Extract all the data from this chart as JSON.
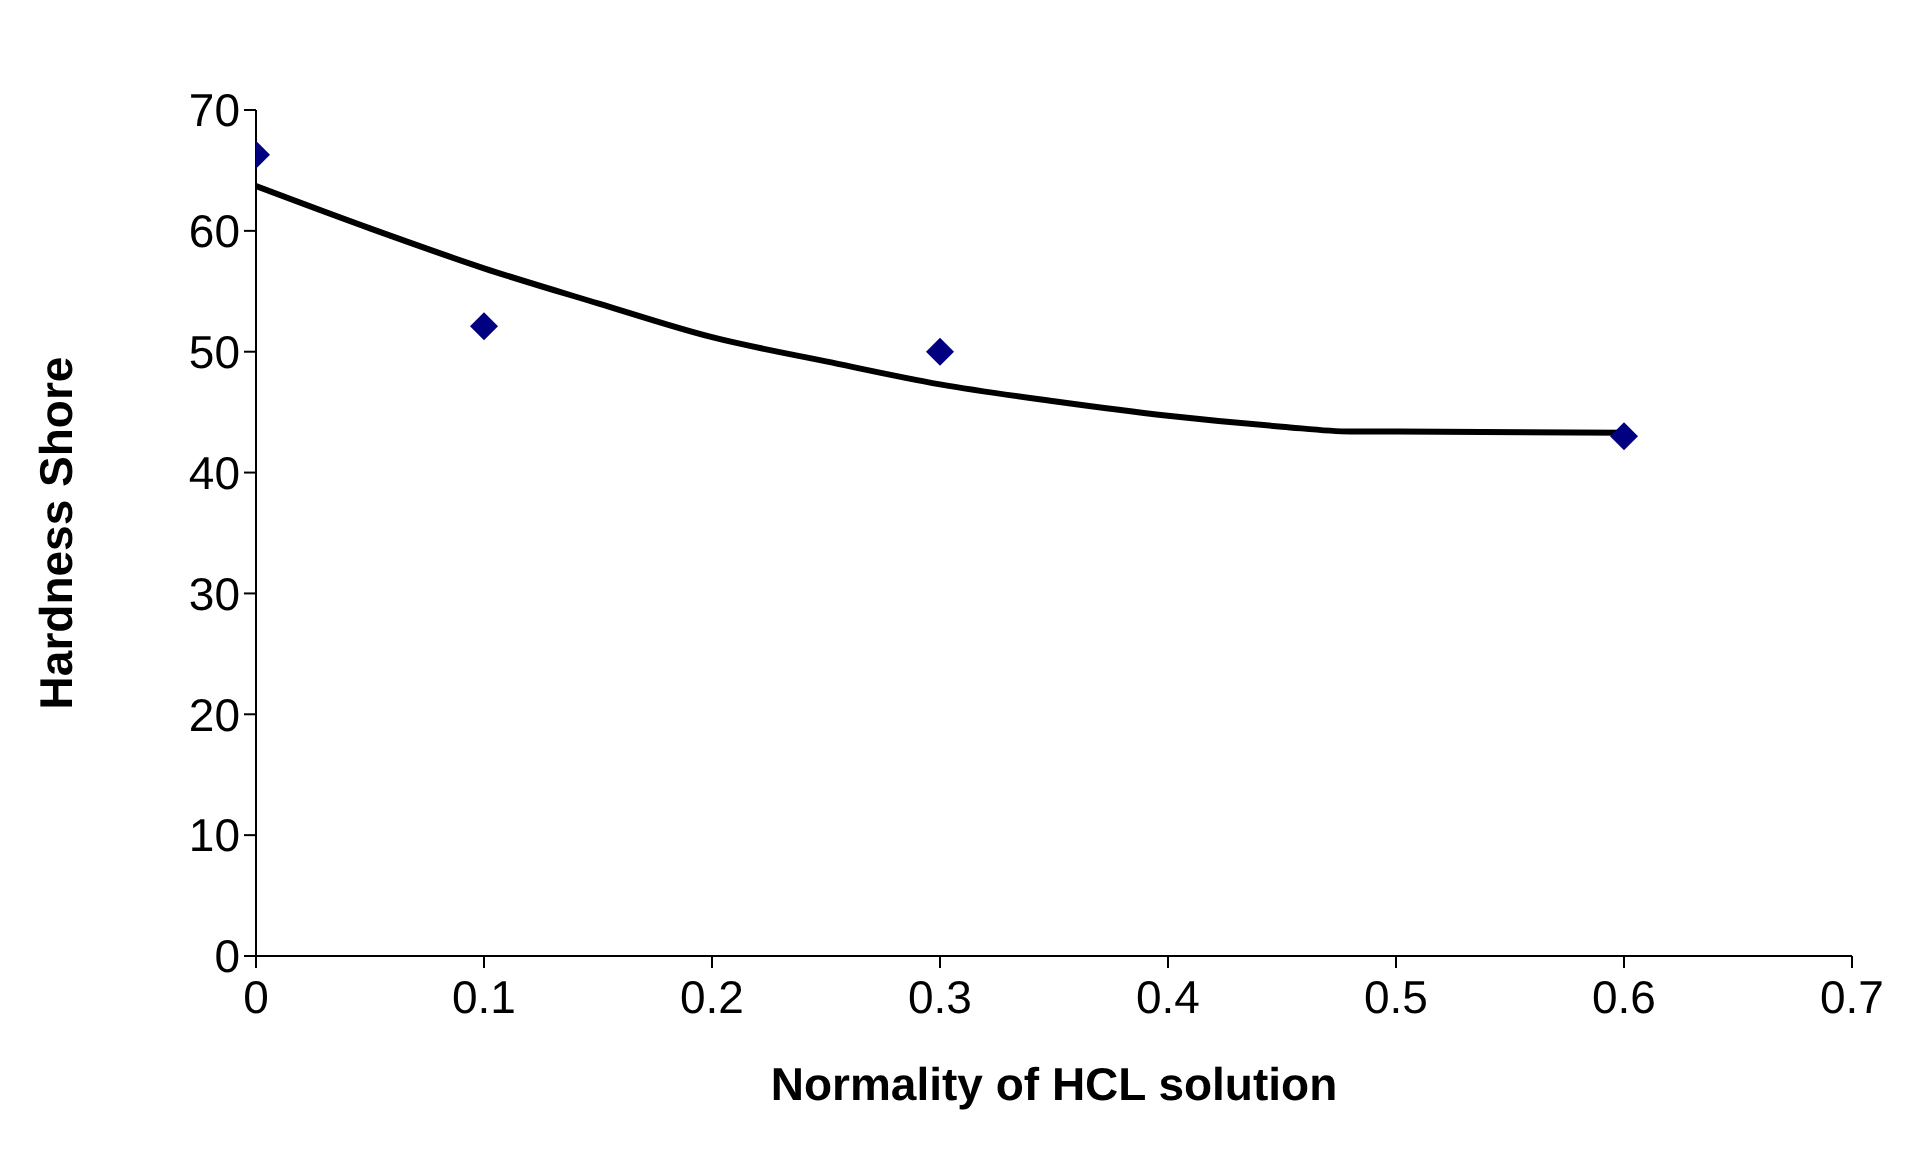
{
  "chart_data": {
    "type": "scatter",
    "xlabel": "Normality of HCL solution",
    "ylabel": "Hardness Shore",
    "xlim": [
      0,
      0.7
    ],
    "xticks": [
      0,
      0.1,
      0.2,
      0.3,
      0.4,
      0.5,
      0.6,
      0.7
    ],
    "ylim": [
      0,
      70
    ],
    "yticks": [
      0,
      10,
      20,
      30,
      40,
      50,
      60,
      70
    ],
    "grid": false,
    "marker": "diamond",
    "series": [
      {
        "color": "#000080",
        "x": [
          0,
          0.1,
          0.3,
          0.6
        ],
        "values": [
          66.3,
          52.1,
          50,
          43
        ]
      },
      {
        "type": "line",
        "color": "#000000",
        "marker": "none",
        "line_style": "solid",
        "x": [
          0,
          0.05,
          0.1,
          0.15,
          0.2,
          0.25,
          0.3,
          0.35,
          0.4,
          0.45,
          0.48,
          0.5,
          0.6
        ],
        "values": [
          63.7,
          60.2,
          56.9,
          54,
          51.2,
          49.2,
          47.3,
          45.9,
          44.7,
          43.8,
          43.4,
          43.4,
          43.3
        ]
      }
    ]
  }
}
